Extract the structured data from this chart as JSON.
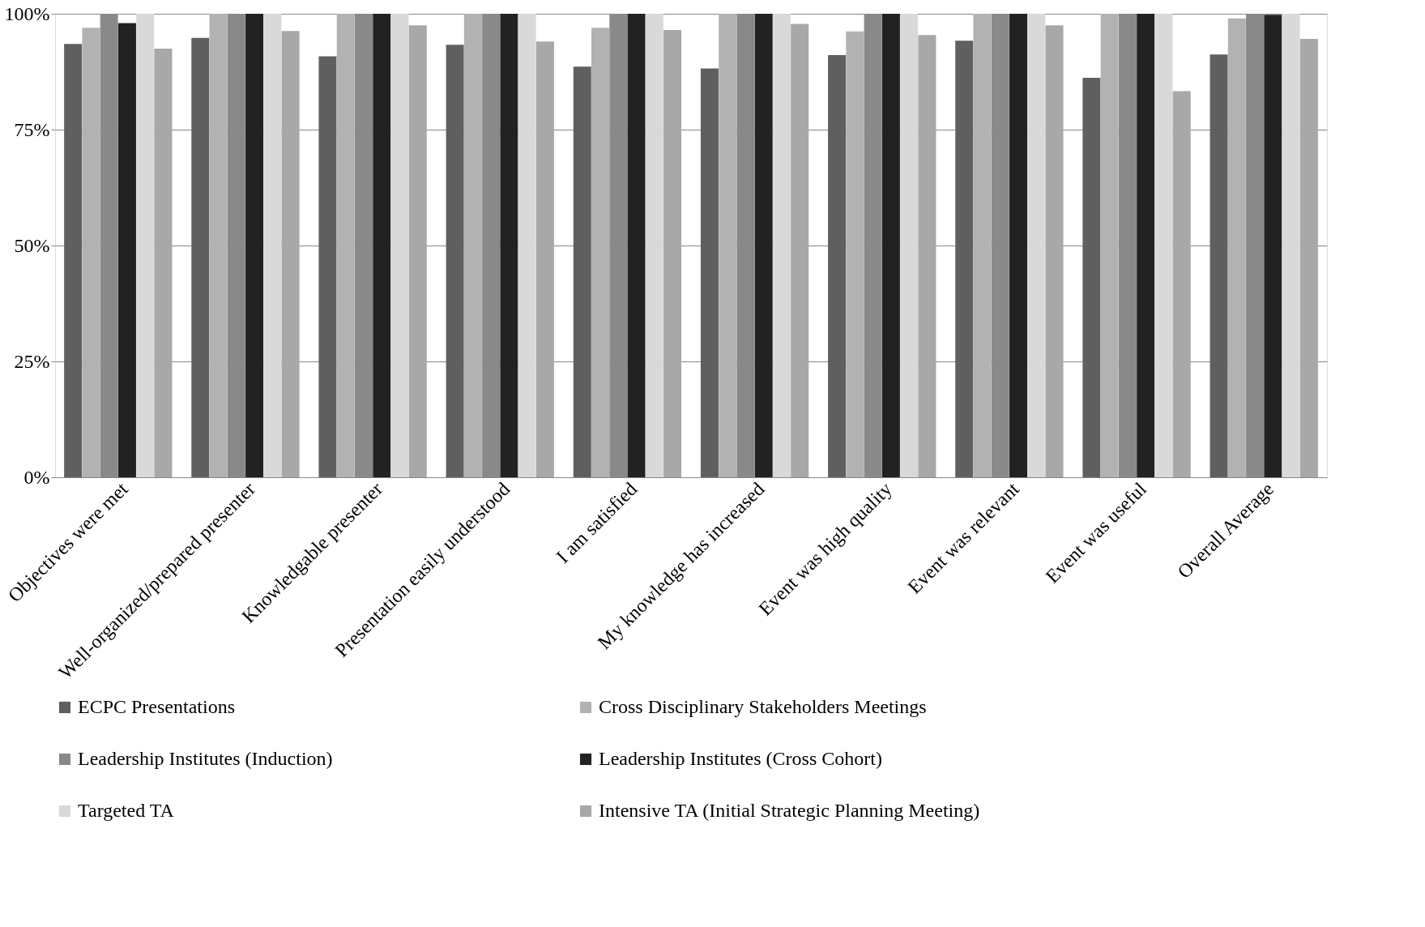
{
  "chart_data": {
    "type": "bar",
    "categories": [
      "Objectives were met",
      "Well-organized/prepared presenter",
      "Knowledgable presenter",
      "Presentation easily understood",
      "I am satisfied",
      "My knowledge has increased",
      "Event was high quality",
      "Event was relevant",
      "Event was useful",
      "Overall Average"
    ],
    "series": [
      {
        "name": "ECPC Presentations",
        "color": "#5f5f5f",
        "values": [
          93.5,
          94.8,
          90.8,
          93.3,
          88.6,
          88.2,
          91.1,
          94.2,
          86.2,
          91.2
        ]
      },
      {
        "name": "Cross Disciplinary Stakeholders Meetings",
        "color": "#b2b2b2",
        "values": [
          97,
          100,
          100,
          100,
          97,
          100,
          96.2,
          100,
          100,
          99
        ]
      },
      {
        "name": "Leadership Institutes (Induction)",
        "color": "#898989",
        "values": [
          100,
          100,
          100,
          100,
          100,
          100,
          100,
          100,
          100,
          100
        ]
      },
      {
        "name": "Leadership Institutes (Cross Cohort)",
        "color": "#222222",
        "values": [
          98,
          100,
          100,
          100,
          100,
          100,
          100,
          100,
          100,
          99.8
        ]
      },
      {
        "name": "Targeted TA",
        "color": "#d9d9d9",
        "values": [
          100,
          100,
          100,
          100,
          100,
          100,
          100,
          100,
          100,
          100
        ]
      },
      {
        "name": "Intensive TA (Initial Strategic Planning Meeting)",
        "color": "#a8a8a8",
        "values": [
          92.5,
          96.3,
          97.5,
          94,
          96.5,
          97.8,
          95.4,
          97.5,
          83.3,
          94.6
        ]
      }
    ],
    "ylim": [
      0,
      100
    ],
    "yticks": [
      {
        "value": 0,
        "label": "0%"
      },
      {
        "value": 25,
        "label": "25%"
      },
      {
        "value": 50,
        "label": "50%"
      },
      {
        "value": 75,
        "label": "75%"
      },
      {
        "value": 100,
        "label": "100%"
      }
    ],
    "grid": "y",
    "legend": "bottom"
  }
}
